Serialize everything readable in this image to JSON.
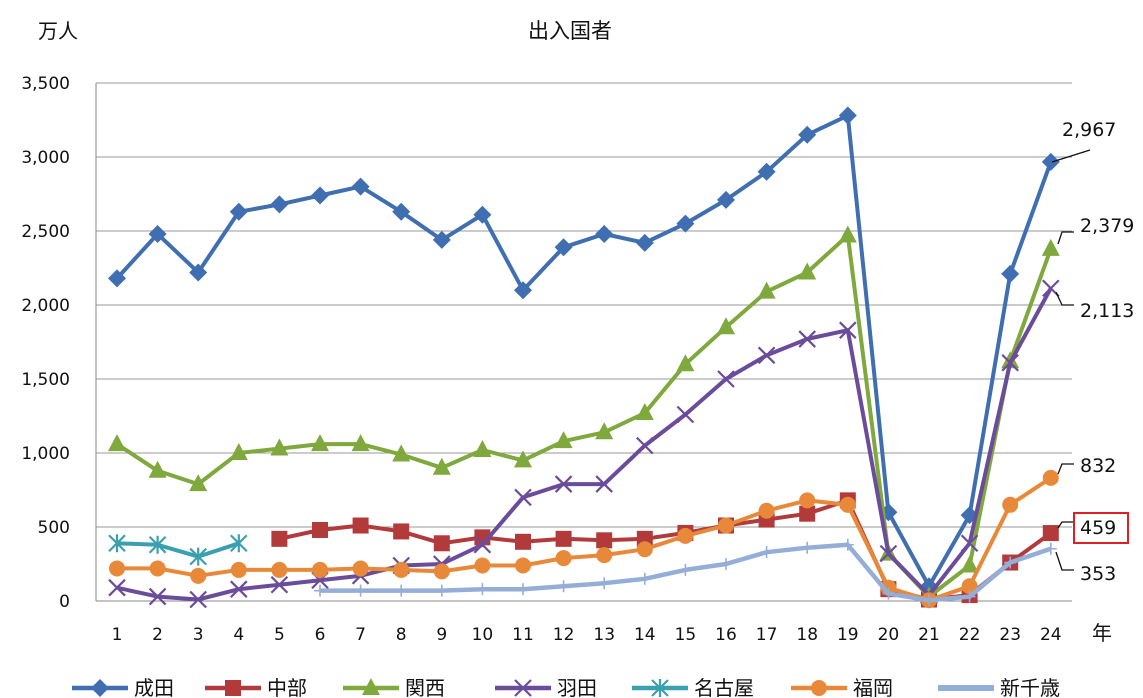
{
  "chart_data": {
    "type": "line",
    "title": "出入国者",
    "ylabel": "万人",
    "xlabel": "年",
    "ylim": [
      0,
      3500
    ],
    "yticks": [
      0,
      500,
      1000,
      1500,
      2000,
      2500,
      3000,
      3500
    ],
    "ytick_labels": [
      "0",
      "500",
      "1,000",
      "1,500",
      "2,000",
      "2,500",
      "3,000",
      "3,500"
    ],
    "categories": [
      "1",
      "2",
      "3",
      "4",
      "5",
      "6",
      "7",
      "8",
      "9",
      "10",
      "11",
      "12",
      "13",
      "14",
      "15",
      "16",
      "17",
      "18",
      "19",
      "20",
      "21",
      "22",
      "23",
      "24"
    ],
    "grid": true,
    "legend_position": "bottom",
    "series": [
      {
        "name": "成田",
        "color": "#3f6fb0",
        "marker": "diamond",
        "values": [
          2180,
          2480,
          2220,
          2630,
          2680,
          2740,
          2800,
          2630,
          2440,
          2610,
          2100,
          2390,
          2480,
          2420,
          2550,
          2710,
          2900,
          3150,
          3280,
          600,
          100,
          580,
          2210,
          2967
        ]
      },
      {
        "name": "中部",
        "color": "#b23a3a",
        "marker": "square",
        "values": [
          null,
          null,
          null,
          null,
          420,
          480,
          510,
          470,
          390,
          430,
          400,
          420,
          410,
          420,
          460,
          510,
          550,
          590,
          680,
          80,
          10,
          40,
          260,
          459
        ]
      },
      {
        "name": "関西",
        "color": "#7fa83d",
        "marker": "triangle",
        "values": [
          1060,
          880,
          790,
          1000,
          1030,
          1060,
          1060,
          990,
          900,
          1020,
          950,
          1080,
          1140,
          1270,
          1600,
          1850,
          2090,
          2220,
          2470,
          320,
          30,
          240,
          1620,
          2379
        ]
      },
      {
        "name": "羽田",
        "color": "#6b4c9a",
        "marker": "x",
        "values": [
          90,
          30,
          10,
          80,
          110,
          140,
          170,
          240,
          250,
          380,
          700,
          790,
          790,
          1050,
          1260,
          1500,
          1660,
          1770,
          1830,
          320,
          40,
          390,
          1610,
          2113
        ]
      },
      {
        "name": "名古屋",
        "color": "#3aa0b0",
        "marker": "asterisk",
        "values": [
          390,
          380,
          300,
          390,
          null,
          null,
          null,
          null,
          null,
          null,
          null,
          null,
          null,
          null,
          null,
          null,
          null,
          null,
          null,
          null,
          null,
          null,
          null,
          null
        ]
      },
      {
        "name": "福岡",
        "color": "#e8893a",
        "marker": "circle",
        "values": [
          220,
          220,
          170,
          210,
          210,
          210,
          220,
          210,
          200,
          240,
          240,
          290,
          310,
          350,
          440,
          510,
          610,
          680,
          650,
          90,
          5,
          100,
          650,
          832
        ]
      },
      {
        "name": "新千歳",
        "color": "#94aed8",
        "marker": "plus",
        "values": [
          null,
          null,
          null,
          null,
          null,
          70,
          70,
          70,
          70,
          80,
          80,
          100,
          120,
          150,
          210,
          250,
          330,
          360,
          380,
          50,
          5,
          30,
          260,
          353
        ]
      }
    ],
    "end_labels": [
      "2,967",
      "2,379",
      "2,113",
      "832",
      "459",
      "353"
    ]
  }
}
